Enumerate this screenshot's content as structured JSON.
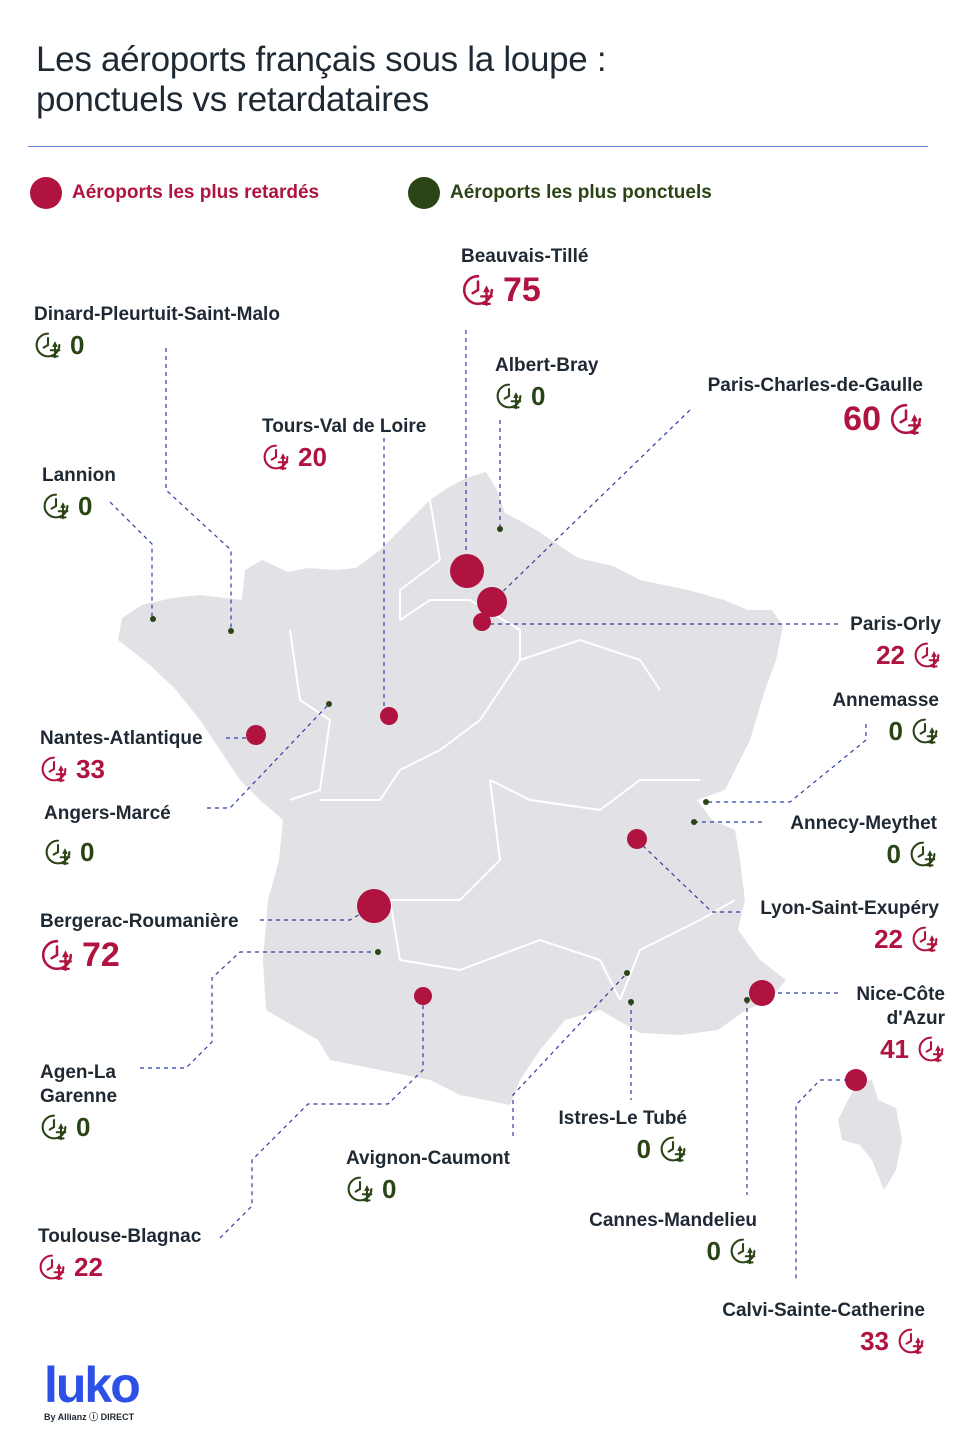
{
  "title": {
    "line1": "Les aéroports français sous la loupe :",
    "line2": "ponctuels vs retardataires"
  },
  "legend": {
    "delayed": "Aéroports les plus retardés",
    "punctual": "Aéroports les plus ponctuels"
  },
  "colors": {
    "delayed": "#b0133f",
    "punctual": "#2b4416",
    "map": "#e2e1e5",
    "line": "#2f3e9e",
    "brand": "#2d50e6"
  },
  "icon": "clock-plane-icon",
  "airports": [
    {
      "id": "beauvais",
      "name": "Beauvais-Tillé",
      "value": "75",
      "status": "delayed"
    },
    {
      "id": "dinard",
      "name": "Dinard-Pleurtuit-Saint-Malo",
      "value": "0",
      "status": "punctual"
    },
    {
      "id": "albert",
      "name": "Albert-Bray",
      "value": "0",
      "status": "punctual"
    },
    {
      "id": "cdg",
      "name": "Paris-Charles-de-Gaulle",
      "value": "60",
      "status": "delayed"
    },
    {
      "id": "tours",
      "name": "Tours-Val de Loire",
      "value": "20",
      "status": "delayed"
    },
    {
      "id": "lannion",
      "name": "Lannion",
      "value": "0",
      "status": "punctual"
    },
    {
      "id": "orly",
      "name": "Paris-Orly",
      "value": "22",
      "status": "delayed"
    },
    {
      "id": "annemasse",
      "name": "Annemasse",
      "value": "0",
      "status": "punctual"
    },
    {
      "id": "nantes",
      "name": "Nantes-Atlantique",
      "value": "33",
      "status": "delayed"
    },
    {
      "id": "angers",
      "name": "Angers-Marcé",
      "value": "0",
      "status": "punctual"
    },
    {
      "id": "annecy",
      "name": "Annecy-Meythet",
      "value": "0",
      "status": "punctual"
    },
    {
      "id": "lyon",
      "name": "Lyon-Saint-Exupéry",
      "value": "22",
      "status": "delayed"
    },
    {
      "id": "bergerac",
      "name": "Bergerac-Roumanière",
      "value": "72",
      "status": "delayed"
    },
    {
      "id": "nice",
      "name": "Nice-Côte d'Azur",
      "name_line1": "Nice-Côte",
      "name_line2": "d'Azur",
      "value": "41",
      "status": "delayed"
    },
    {
      "id": "agen",
      "name": "Agen-La Garenne",
      "name_line1": "Agen-La",
      "name_line2": "Garenne",
      "value": "0",
      "status": "punctual"
    },
    {
      "id": "istres",
      "name": "Istres-Le Tubé",
      "value": "0",
      "status": "punctual"
    },
    {
      "id": "avignon",
      "name": "Avignon-Caumont",
      "value": "0",
      "status": "punctual"
    },
    {
      "id": "cannes",
      "name": "Cannes-Mandelieu",
      "value": "0",
      "status": "punctual"
    },
    {
      "id": "toulouse",
      "name": "Toulouse-Blagnac",
      "value": "22",
      "status": "delayed"
    },
    {
      "id": "calvi",
      "name": "Calvi-Sainte-Catherine",
      "value": "33",
      "status": "delayed"
    }
  ],
  "brand": {
    "logo": "luko",
    "by": "By Allianz ⓘ DIRECT"
  }
}
